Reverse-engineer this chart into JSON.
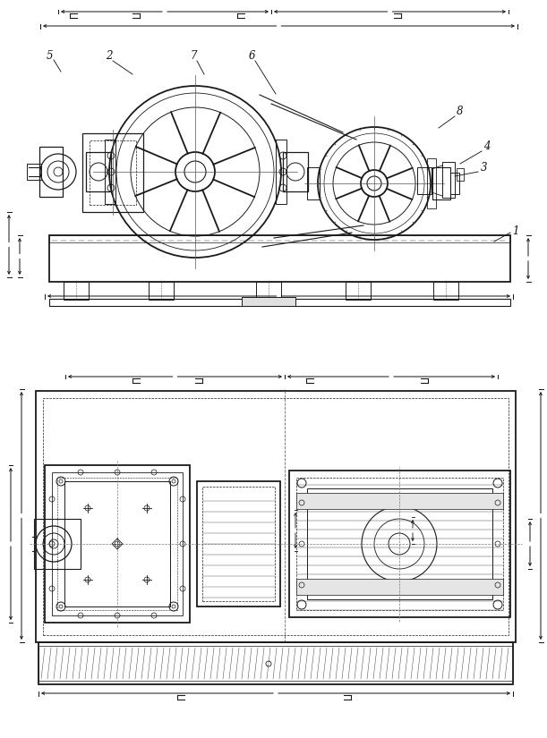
{
  "bg_color": "#ffffff",
  "line_color": "#1a1a1a",
  "dim_color": "#111111",
  "fig_width": 6.11,
  "fig_height": 8.25,
  "dpi": 100
}
